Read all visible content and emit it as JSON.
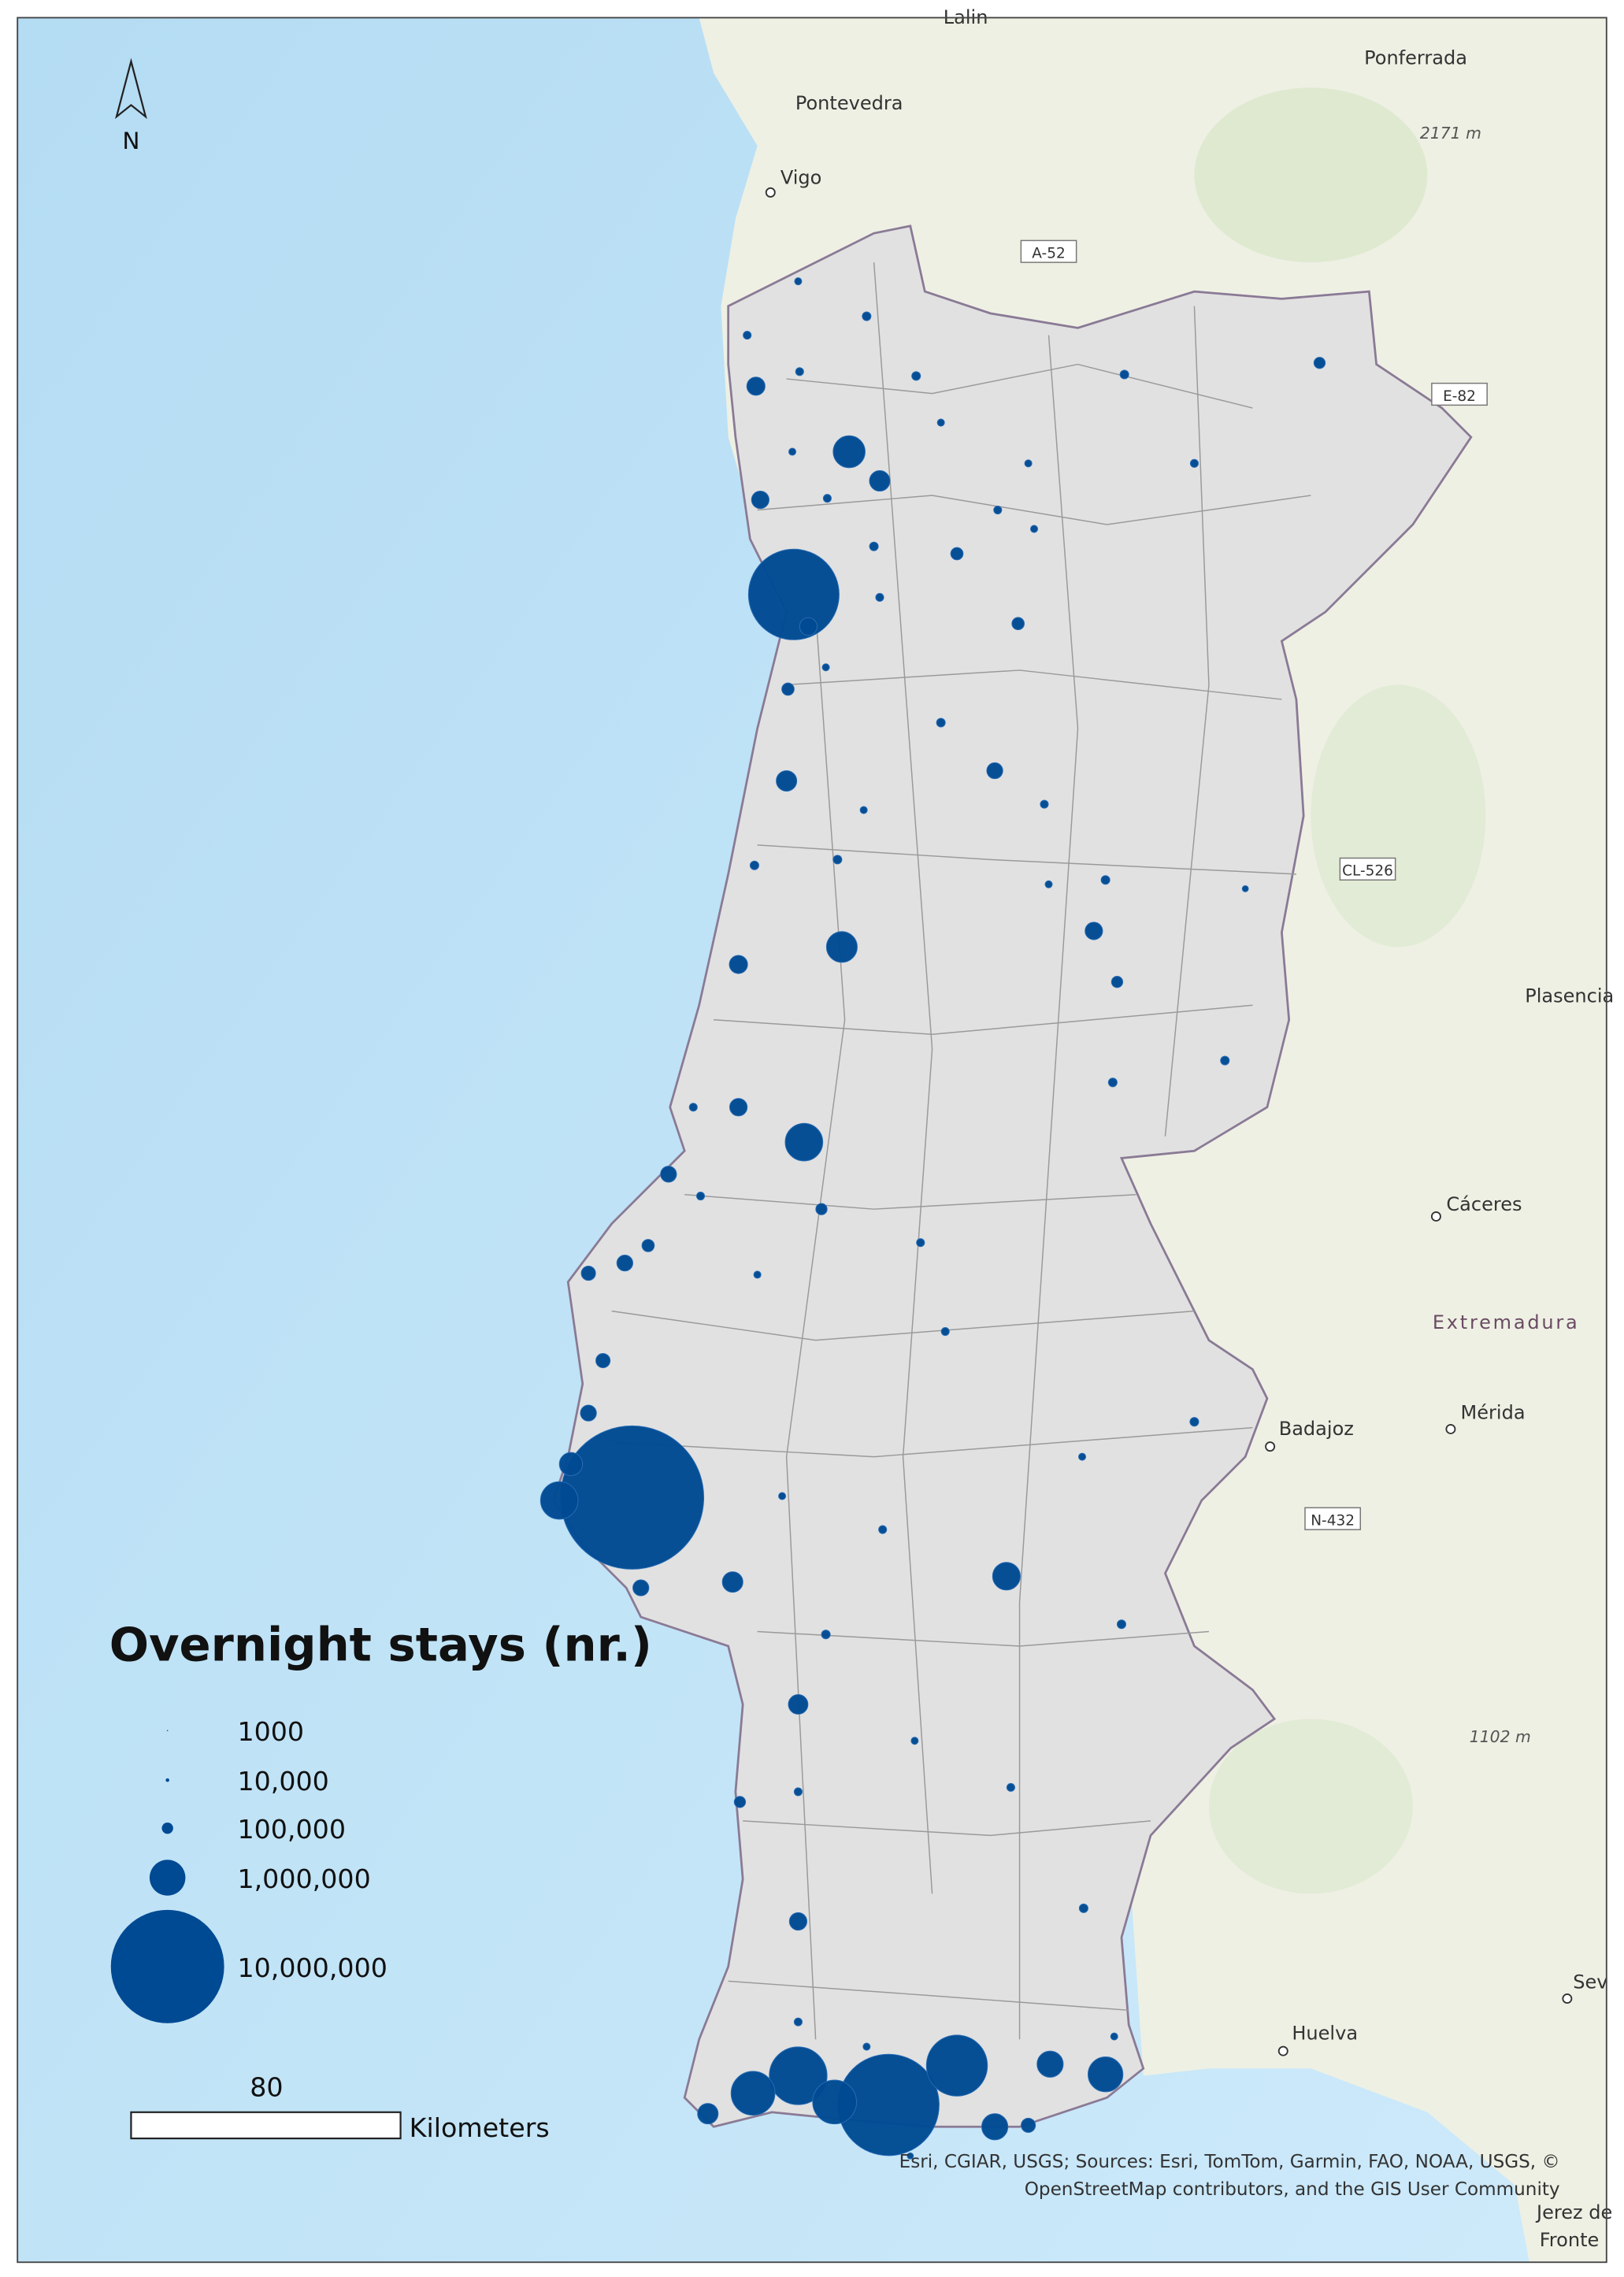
{
  "map": {
    "north_label": "N",
    "places": [
      "Lalin",
      "Ponferrada",
      "Pontevedra",
      "Vigo",
      "Plasencia",
      "Cáceres",
      "Badajoz",
      "Mérida",
      "Huelva",
      "Sev",
      "Jerez de",
      "Fronte"
    ],
    "roads": [
      "A-52",
      "E-82",
      "CL-526",
      "N-432"
    ],
    "elevations": [
      "2171 m",
      "1102 m"
    ],
    "region": "Extremadura"
  },
  "legend": {
    "title": "Overnight stays (nr.)",
    "items": [
      {
        "value": 1000,
        "label": "1000"
      },
      {
        "value": 10000,
        "label": "10,000"
      },
      {
        "value": 100000,
        "label": "100,000"
      },
      {
        "value": 1000000,
        "label": "1,000,000"
      },
      {
        "value": 10000000,
        "label": "10,000,000"
      }
    ]
  },
  "scale_bar": {
    "value": 80,
    "unit": "Kilometers"
  },
  "attribution": [
    "Esri, CGIAR, USGS; Sources: Esri, TomTom, Garmin, FAO, NOAA, USGS, ©",
    "OpenStreetMap contributors, and the GIS User Community"
  ],
  "bubbles": {
    "values": [
      6400000,
      16000000,
      1100000,
      420000,
      8000000,
      2900000,
      2600000,
      1500000,
      1500000,
      535000,
      950000,
      535000,
      160000,
      330000,
      800000,
      330000,
      260000,
      240000,
      740000,
      1100000,
      330000,
      260000,
      240000,
      200000,
      200000,
      120000,
      160000,
      160000,
      330000,
      600000,
      300000,
      240000,
      200000,
      200000,
      240000,
      200000,
      120000,
      120000,
      100000,
      100000,
      100000,
      100000,
      120000,
      240000,
      40000,
      60000,
      50000,
      50000,
      60000,
      60000,
      40000,
      40000,
      50000,
      40000,
      50000,
      60000,
      40000,
      50000,
      40000,
      50000,
      60000,
      50000,
      40000,
      60000,
      60000,
      40000,
      60000,
      30000,
      60000,
      60000,
      50000,
      50000,
      60000,
      40000,
      60000,
      50000,
      40000,
      60000,
      50000,
      40000,
      50000,
      60000,
      40000,
      50000,
      40000,
      50000,
      50000,
      40000,
      30000
    ]
  }
}
